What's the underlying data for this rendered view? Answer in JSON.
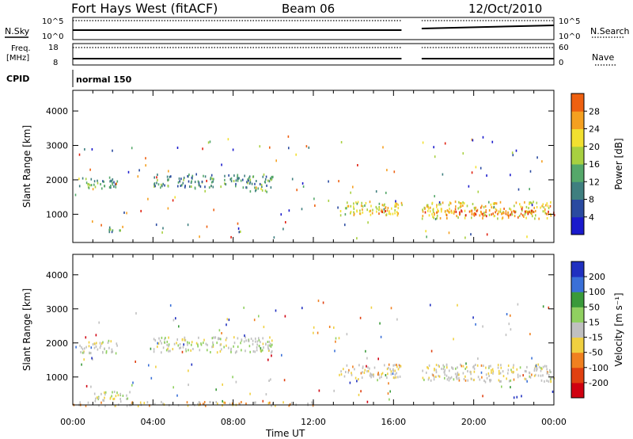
{
  "header": {
    "radar": "Fort Hays West (fitACF)",
    "beam": "Beam 06",
    "date": "12/Oct/2010"
  },
  "strips": {
    "nsky_label": "N.Sky",
    "nsky_ticks": [
      "10^5",
      "10^0"
    ],
    "nsearch_label": "N.Search",
    "nsearch_ticks": [
      "10^5",
      "10^0"
    ],
    "freq_label": "Freq.",
    "freq_unit": "[MHz]",
    "freq_ticks": [
      "18",
      "8"
    ],
    "nave_label": "Nave",
    "nave_ticks": [
      "60",
      "0"
    ],
    "cpid_label": "CPID",
    "cpid_value": "normal 150"
  },
  "colors": {
    "power": [
      "#1a1acc",
      "#2a4aa0",
      "#3f7f7f",
      "#55a86a",
      "#a8d040",
      "#f2e030",
      "#f5a020",
      "#ee6010",
      "#e02010"
    ],
    "velocity": [
      "#2030c0",
      "#3a70d8",
      "#3a9a3a",
      "#90d060",
      "#c0c0c0",
      "#c0c0c0",
      "#f0d040",
      "#f08020",
      "#e04010",
      "#d00010"
    ]
  },
  "chart_data": [
    {
      "type": "heatmap",
      "panel": "power",
      "ylabel": "Slant Range [km]",
      "xlabel": "",
      "x_ticks": [
        "00:00",
        "04:00",
        "08:00",
        "12:00",
        "16:00",
        "20:00",
        "00:00"
      ],
      "y_ticks": [
        "1000",
        "2000",
        "3000",
        "4000"
      ],
      "ylim": [
        180,
        4600
      ],
      "xlim_hours": [
        0,
        24
      ],
      "data_gaps_hours": [
        [
          16.4,
          17.4
        ]
      ],
      "colorbar": {
        "label": "Power [dB]",
        "ticks": [
          "4",
          "8",
          "12",
          "16",
          "20",
          "24",
          "28"
        ],
        "range": [
          0,
          32
        ]
      },
      "scatter_regions": [
        {
          "x": [
            0.3,
            2.2
          ],
          "y": [
            1750,
            2100
          ],
          "value": 12
        },
        {
          "x": [
            4.0,
            10.0
          ],
          "y": [
            1800,
            2200
          ],
          "value": 10
        },
        {
          "x": [
            8.8,
            9.8
          ],
          "y": [
            1650,
            1800
          ],
          "value": 16
        },
        {
          "x": [
            13.3,
            16.4
          ],
          "y": [
            1000,
            1400
          ],
          "value": 18
        },
        {
          "x": [
            14.0,
            16.4
          ],
          "y": [
            1050,
            1150
          ],
          "value": 26
        },
        {
          "x": [
            17.4,
            24.0
          ],
          "y": [
            900,
            1400
          ],
          "value": 20
        },
        {
          "x": [
            17.4,
            24.0
          ],
          "y": [
            980,
            1150
          ],
          "value": 26
        },
        {
          "x": [
            1.7,
            2.4
          ],
          "y": [
            500,
            700
          ],
          "value": 10
        }
      ]
    },
    {
      "type": "heatmap",
      "panel": "velocity",
      "ylabel": "Slant Range [km]",
      "xlabel": "Time UT",
      "x_ticks": [
        "00:00",
        "04:00",
        "08:00",
        "12:00",
        "16:00",
        "20:00",
        "00:00"
      ],
      "y_ticks": [
        "1000",
        "2000",
        "3000",
        "4000"
      ],
      "ylim": [
        180,
        4600
      ],
      "xlim_hours": [
        0,
        24
      ],
      "data_gaps_hours": [
        [
          16.4,
          17.4
        ]
      ],
      "colorbar": {
        "label": "Velocity [m s⁻¹]",
        "ticks": [
          "200",
          "100",
          "50",
          "15",
          "-15",
          "-50",
          "-100",
          "-200"
        ],
        "range": [
          -250,
          250
        ]
      },
      "scatter_regions": [
        {
          "x": [
            0.3,
            2.2
          ],
          "y": [
            1700,
            2100
          ],
          "value": 0
        },
        {
          "x": [
            4.0,
            10.0
          ],
          "y": [
            1750,
            2200
          ],
          "value": 5
        },
        {
          "x": [
            13.3,
            16.4
          ],
          "y": [
            1000,
            1400
          ],
          "value": -40
        },
        {
          "x": [
            17.4,
            24.0
          ],
          "y": [
            900,
            1400
          ],
          "value": -20
        },
        {
          "x": [
            1.0,
            3.0
          ],
          "y": [
            300,
            600
          ],
          "value": 0
        },
        {
          "x": [
            0.0,
            12.0
          ],
          "y": [
            180,
            300
          ],
          "value": -60
        }
      ]
    }
  ]
}
